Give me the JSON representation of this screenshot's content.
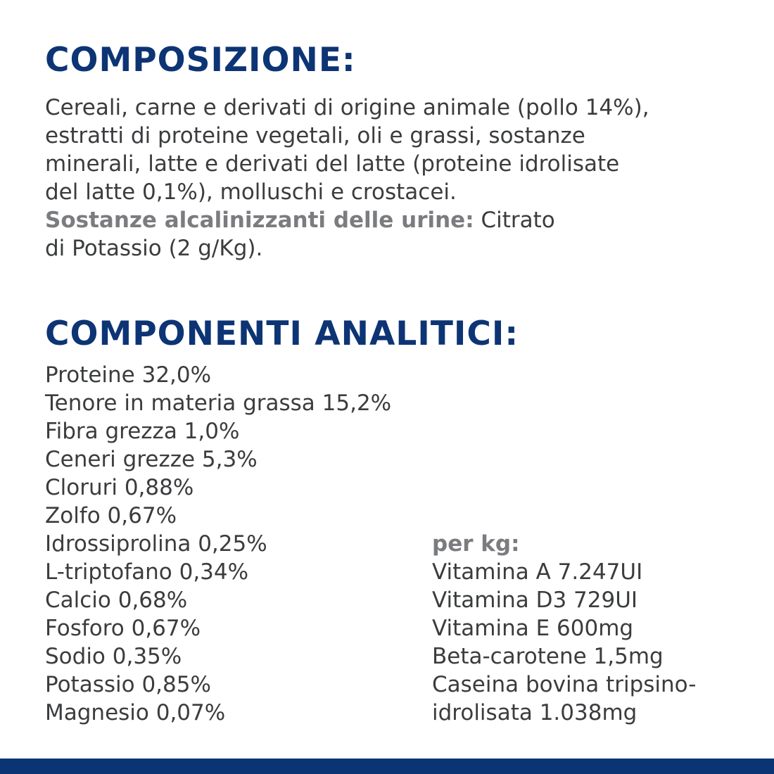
{
  "composition": {
    "heading": "COMPOSIZIONE:",
    "lines": [
      "Cereali, carne e derivati di origine animale (pollo 14%),",
      "estratti di proteine vegetali, oli e grassi, sostanze",
      "minerali, latte e derivati del latte (proteine idrolisate",
      "del latte 0,1%), molluschi e crostacei."
    ],
    "alkalizing_label": "Sostanze alcalinizzanti delle urine:",
    "alkalizing_value_1": " Citrato",
    "alkalizing_value_2": "di Potassio (2 g/Kg)."
  },
  "analytical": {
    "heading": "COMPONENTI ANALITICI:",
    "items": [
      "Proteine 32,0%",
      "Tenore in materia grassa 15,2%",
      "Fibra grezza 1,0%",
      "Ceneri grezze 5,3%",
      "Cloruri 0,88%",
      "Zolfo 0,67%",
      "Idrossiprolina 0,25%",
      "L-triptofano 0,34%",
      "Calcio 0,68%",
      "Fosforo 0,67%",
      "Sodio 0,35%",
      "Potassio 0,85%",
      "Magnesio 0,07%"
    ],
    "per_kg": {
      "label": "per kg:",
      "items": [
        "Vitamina A 7.247UI",
        "Vitamina D3 729UI",
        "Vitamina E 600mg",
        "Beta-carotene 1,5mg",
        "Caseina bovina tripsino-",
        "idrolisata 1.038mg"
      ]
    }
  },
  "colors": {
    "heading": "#0d3474",
    "text": "#3b3c3e",
    "bold_label": "#7b7c7f",
    "footer_bar": "#0b3474"
  }
}
